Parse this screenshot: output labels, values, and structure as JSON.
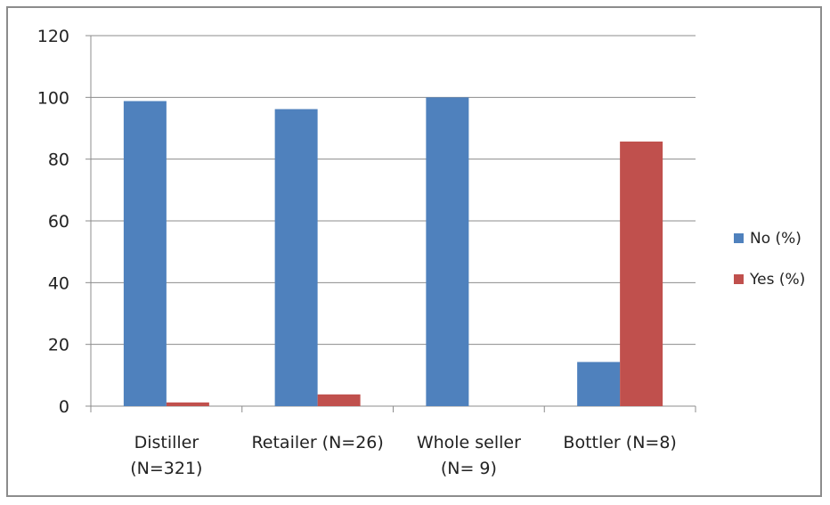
{
  "chart_data": {
    "type": "bar",
    "categories": [
      [
        "Distiller",
        "(N=321)"
      ],
      [
        "Retailer (N=26)"
      ],
      [
        "Whole seller",
        "(N= 9)"
      ],
      [
        "Bottler (N=8)"
      ]
    ],
    "series": [
      {
        "name": "No (%)",
        "color": "#4f81bd",
        "values": [
          98.8,
          96.2,
          100,
          14.3
        ]
      },
      {
        "name": "Yes (%)",
        "color": "#c0504d",
        "values": [
          1.2,
          3.8,
          0,
          85.7
        ]
      }
    ],
    "ylim": [
      0,
      120
    ],
    "yticks": [
      0,
      20,
      40,
      60,
      80,
      100,
      120
    ],
    "grid": true,
    "legend": "right"
  }
}
